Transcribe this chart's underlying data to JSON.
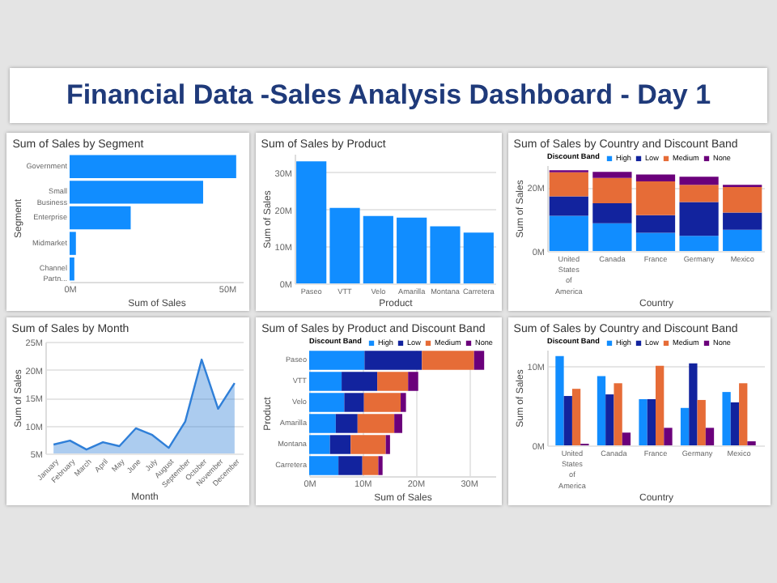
{
  "chart_data": [
    {
      "type": "other",
      "title": "Financial Data -Sales Analysis Dashboard - Day 1"
    },
    {
      "type": "bar",
      "title": "Sum of Sales by Segment",
      "orientation": "horizontal",
      "categories": [
        "Government",
        "Small Business",
        "Enterprise",
        "Midmarket",
        "Channel Partn..."
      ],
      "values": [
        52.9,
        42.4,
        19.4,
        2.0,
        1.5
      ],
      "color": "#118dff",
      "xlim": [
        0,
        55
      ],
      "xticks": [
        {
          "value": 0,
          "label": "0M"
        },
        {
          "value": 50,
          "label": "50M"
        }
      ],
      "xlabel": "Sum of Sales",
      "ylabel": "Segment"
    },
    {
      "type": "bar",
      "title": "Sum of Sales by Product",
      "categories": [
        "Paseo",
        "VTT",
        "Velo",
        "Amarilla",
        "Montana",
        "Carretera"
      ],
      "values": [
        33.0,
        20.4,
        18.2,
        17.8,
        15.4,
        13.7
      ],
      "color": "#118dff",
      "ylim": [
        0,
        35
      ],
      "yticks": [
        {
          "value": 0,
          "label": "0M"
        },
        {
          "value": 10,
          "label": "10M"
        },
        {
          "value": 20,
          "label": "20M"
        },
        {
          "value": 30,
          "label": "30M"
        }
      ],
      "xlabel": "Product",
      "ylabel": "Sum of Sales",
      "grid": "y"
    },
    {
      "type": "bar",
      "title": "Sum of Sales by Country and Discount Band",
      "stacked": true,
      "categories": [
        "United States of America",
        "Canada",
        "France",
        "Germany",
        "Mexico"
      ],
      "legend_title": "Discount Band",
      "legend": "top",
      "series": [
        {
          "name": "High",
          "color": "#118dff",
          "values": [
            11.1,
            8.7,
            5.7,
            4.8,
            6.7
          ]
        },
        {
          "name": "Low",
          "color": "#12239e",
          "values": [
            6.1,
            6.3,
            5.6,
            10.6,
            5.4
          ]
        },
        {
          "name": "Medium",
          "color": "#e66c37",
          "values": [
            7.6,
            8.0,
            10.6,
            5.4,
            8.0
          ]
        },
        {
          "name": "None",
          "color": "#6b007b",
          "values": [
            0.6,
            1.9,
            2.2,
            2.6,
            0.7
          ]
        }
      ],
      "ylim": [
        0,
        27
      ],
      "yticks": [
        {
          "value": 0,
          "label": "0M"
        },
        {
          "value": 20,
          "label": "20M"
        }
      ],
      "xlabel": "Country",
      "ylabel": "Sum of Sales",
      "grid": "y"
    },
    {
      "type": "area",
      "title": "Sum of Sales by Month",
      "categories": [
        "January",
        "February",
        "March",
        "April",
        "May",
        "June",
        "July",
        "August",
        "September",
        "October",
        "November",
        "December"
      ],
      "values": [
        6.6,
        7.3,
        5.7,
        7.0,
        6.3,
        9.5,
        8.3,
        6.0,
        10.7,
        21.8,
        13.0,
        17.6
      ],
      "color": "#2f7fd8",
      "ylim": [
        5,
        25
      ],
      "yticks": [
        {
          "value": 5,
          "label": "5M"
        },
        {
          "value": 10,
          "label": "10M"
        },
        {
          "value": 15,
          "label": "15M"
        },
        {
          "value": 20,
          "label": "20M"
        },
        {
          "value": 25,
          "label": "25M"
        }
      ],
      "xlabel": "Month",
      "ylabel": "Sum of Sales",
      "grid": "y"
    },
    {
      "type": "bar",
      "title": "Sum of Sales by Product and Discount Band",
      "orientation": "horizontal",
      "stacked": true,
      "categories": [
        "Paseo",
        "VTT",
        "Velo",
        "Amarilla",
        "Montana",
        "Carretera"
      ],
      "legend_title": "Discount Band",
      "legend": "top",
      "series": [
        {
          "name": "High",
          "color": "#118dff",
          "values": [
            10.4,
            6.1,
            6.6,
            5.0,
            3.9,
            5.5
          ]
        },
        {
          "name": "Low",
          "color": "#12239e",
          "values": [
            10.8,
            6.7,
            3.7,
            4.1,
            3.9,
            4.5
          ]
        },
        {
          "name": "Medium",
          "color": "#e66c37",
          "values": [
            9.8,
            5.8,
            6.9,
            6.9,
            6.6,
            3.0
          ]
        },
        {
          "name": "None",
          "color": "#6b007b",
          "values": [
            1.9,
            1.9,
            1.0,
            1.5,
            0.8,
            0.8
          ]
        }
      ],
      "xlim": [
        0,
        35
      ],
      "xticks": [
        {
          "value": 0,
          "label": "0M"
        },
        {
          "value": 10,
          "label": "10M"
        },
        {
          "value": 20,
          "label": "20M"
        },
        {
          "value": 30,
          "label": "30M"
        }
      ],
      "xlabel": "Sum of Sales",
      "ylabel": "Product",
      "grid": "x"
    },
    {
      "type": "bar",
      "title": "Sum of Sales by Country and Discount Band",
      "categories": [
        "United States of America",
        "Canada",
        "France",
        "Germany",
        "Mexico"
      ],
      "legend_title": "Discount Band",
      "legend": "top",
      "series": [
        {
          "name": "High",
          "color": "#118dff",
          "values": [
            11.2,
            8.7,
            5.8,
            4.7,
            6.7
          ]
        },
        {
          "name": "Low",
          "color": "#12239e",
          "values": [
            6.2,
            6.4,
            5.8,
            10.3,
            5.4
          ]
        },
        {
          "name": "Medium",
          "color": "#e66c37",
          "values": [
            7.1,
            7.8,
            10.0,
            5.7,
            7.8
          ]
        },
        {
          "name": "None",
          "color": "#6b007b",
          "values": [
            0.2,
            1.6,
            2.2,
            2.2,
            0.5
          ]
        }
      ],
      "ylim": [
        0,
        12
      ],
      "yticks": [
        {
          "value": 0,
          "label": "0M"
        },
        {
          "value": 10,
          "label": "10M"
        }
      ],
      "xlabel": "Country",
      "ylabel": "Sum of Sales",
      "grid": "y"
    }
  ]
}
